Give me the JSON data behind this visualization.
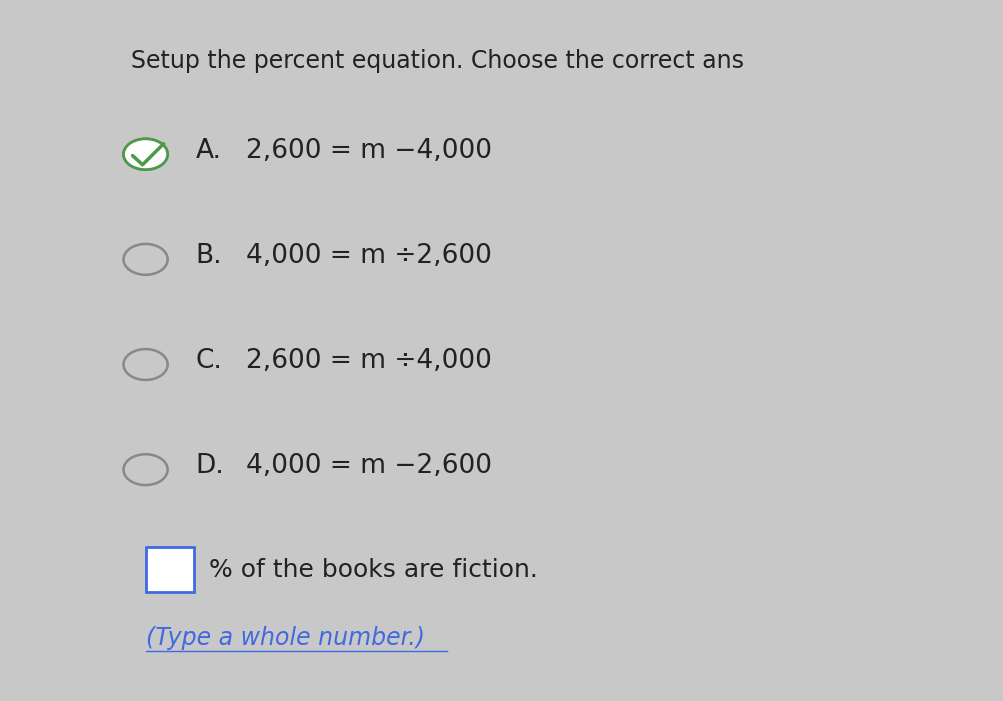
{
  "title": "Setup the percent equation. Choose the correct ans",
  "title_fontsize": 17,
  "title_color": "#222222",
  "background_color": "#c8c8c8",
  "options": [
    {
      "label": "A.",
      "equation": "2,600 = m −4,000",
      "selected": true
    },
    {
      "label": "B.",
      "equation": "4,000 = m ÷2,600",
      "selected": false
    },
    {
      "label": "C.",
      "equation": "2,600 = m ÷4,000",
      "selected": false
    },
    {
      "label": "D.",
      "equation": "4,000 = m −2,600",
      "selected": false
    }
  ],
  "footer_text": "% of the books are fiction.",
  "footer_sub": "(Type a whole number.)",
  "text_color": "#222222",
  "option_fontsize": 19,
  "footer_fontsize": 18,
  "radio_color": "#888888",
  "check_color": "#4a9a4a",
  "box_border_color": "#4169e1",
  "underline_color": "#4169e1"
}
